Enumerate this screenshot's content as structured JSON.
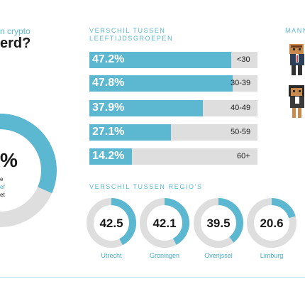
{
  "header": {
    "intro_fragment": "n crypto",
    "question_fragment": "erd?",
    "gender_title_fragment": "MANN"
  },
  "main_donut": {
    "value_fragment": "%",
    "caption_lines": [
      "e",
      "ef",
      "et"
    ]
  },
  "colors": {
    "accent": "#5bb8d0",
    "track": "#dedede",
    "text": "#1a1a1a"
  },
  "chart_data": [
    {
      "type": "bar",
      "title": "VERSCHIL TUSSEN LEEFTIJDSGROEPEN",
      "title_lines": [
        "VERSCHIL TUSSEN",
        "LEEFTIJDSGROEPEN"
      ],
      "categories": [
        "<30",
        "30-39",
        "40-49",
        "50-59",
        "60+"
      ],
      "values": [
        47.2,
        47.8,
        37.9,
        27.1,
        14.2
      ],
      "value_labels": [
        "47.2%",
        "47.8%",
        "37.9%",
        "27.1%",
        "14.2%"
      ],
      "unit": "%",
      "orientation": "horizontal",
      "xlim": [
        0,
        56
      ]
    },
    {
      "type": "pie",
      "title": "VERSCHIL TUSSEN REGIO'S",
      "categories": [
        "Utrecht",
        "Groningen",
        "Overijssel",
        "Limburg"
      ],
      "values": [
        42.5,
        42.1,
        39.5,
        20.6
      ],
      "value_labels": [
        "42.5",
        "42.1",
        "39.5",
        "20.6"
      ],
      "unit": "%",
      "max": 100
    }
  ]
}
